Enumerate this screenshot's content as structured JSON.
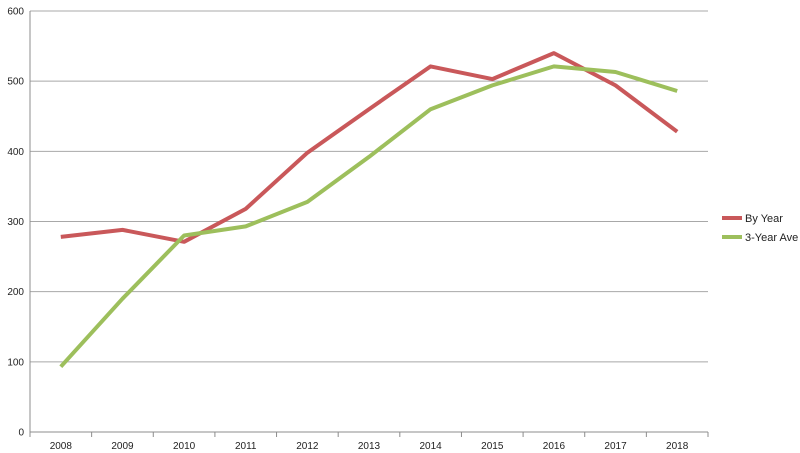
{
  "chart_data": {
    "type": "line",
    "x": [
      "2008",
      "2009",
      "2010",
      "2011",
      "2012",
      "2013",
      "2014",
      "2015",
      "2016",
      "2017",
      "2018"
    ],
    "series": [
      {
        "name": "By Year",
        "color": "#c9585a",
        "values": [
          278,
          288,
          271,
          318,
          398,
          460,
          521,
          503,
          540,
          494,
          428
        ]
      },
      {
        "name": "3-Year Ave",
        "color": "#9dbf5c",
        "values": [
          93,
          190,
          280,
          293,
          328,
          392,
          460,
          494,
          521,
          513,
          486
        ]
      }
    ],
    "ylim": [
      0,
      600
    ],
    "yticks": [
      "0",
      "100",
      "200",
      "300",
      "400",
      "500",
      "600"
    ],
    "grid": true,
    "legend_position": "right"
  }
}
